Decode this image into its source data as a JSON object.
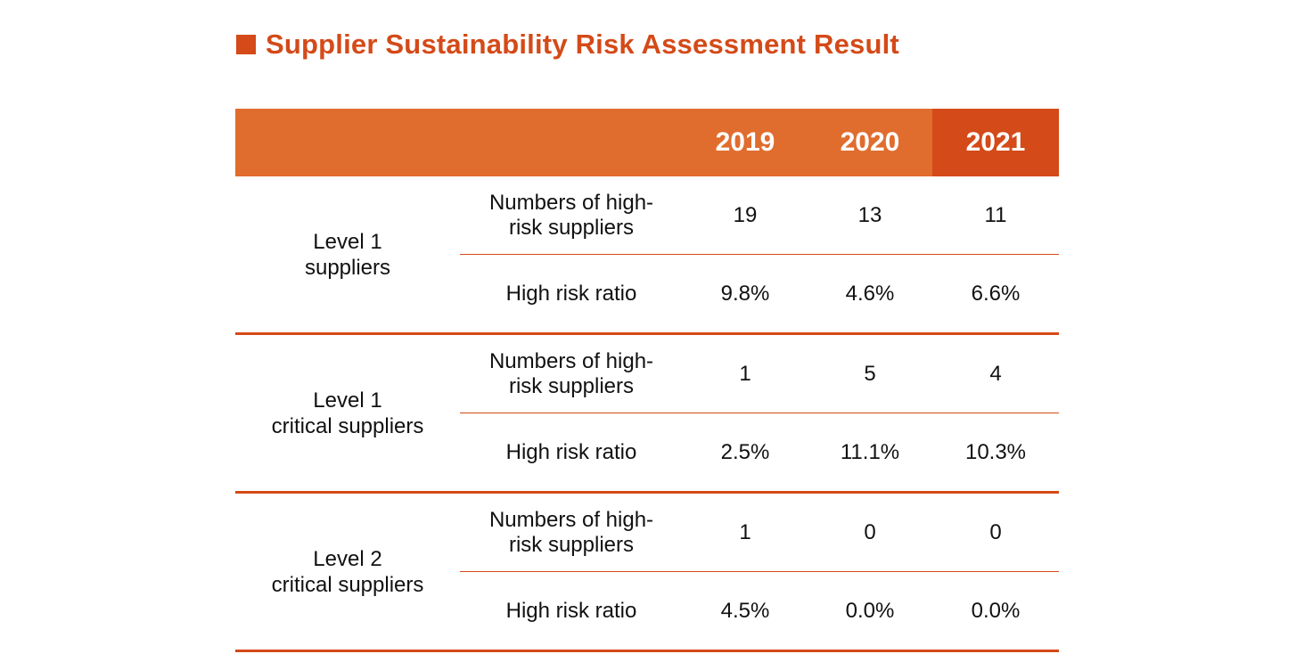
{
  "title": "Supplier Sustainability Risk Assessment Result",
  "colors": {
    "accent": "#D44A18",
    "header_bg": "#E06D2E",
    "header_highlight_bg": "#D44A18"
  },
  "table": {
    "years": [
      "2019",
      "2020",
      "2021"
    ],
    "groups": [
      {
        "label": "Level 1\nsuppliers",
        "label_lines": [
          "Level 1",
          "suppliers"
        ],
        "rows": [
          {
            "metric": "Numbers of high-risk suppliers",
            "metric_lines": [
              "Numbers of high-",
              "risk suppliers"
            ],
            "values": [
              "19",
              "13",
              "11"
            ]
          },
          {
            "metric": "High risk ratio",
            "metric_lines": [
              "High risk ratio"
            ],
            "values": [
              "9.8%",
              "4.6%",
              "6.6%"
            ]
          }
        ]
      },
      {
        "label": "Level 1\ncritical suppliers",
        "label_lines": [
          "Level 1",
          "critical suppliers"
        ],
        "rows": [
          {
            "metric": "Numbers of high-risk suppliers",
            "metric_lines": [
              "Numbers of high-",
              "risk suppliers"
            ],
            "values": [
              "1",
              "5",
              "4"
            ]
          },
          {
            "metric": "High risk ratio",
            "metric_lines": [
              "High risk ratio"
            ],
            "values": [
              "2.5%",
              "11.1%",
              "10.3%"
            ]
          }
        ]
      },
      {
        "label": "Level 2\ncritical suppliers",
        "label_lines": [
          "Level 2",
          "critical suppliers"
        ],
        "rows": [
          {
            "metric": "Numbers of high-risk suppliers",
            "metric_lines": [
              "Numbers of high-",
              "risk suppliers"
            ],
            "values": [
              "1",
              "0",
              "0"
            ]
          },
          {
            "metric": "High risk ratio",
            "metric_lines": [
              "High risk ratio"
            ],
            "values": [
              "4.5%",
              "0.0%",
              "0.0%"
            ]
          }
        ]
      }
    ]
  }
}
